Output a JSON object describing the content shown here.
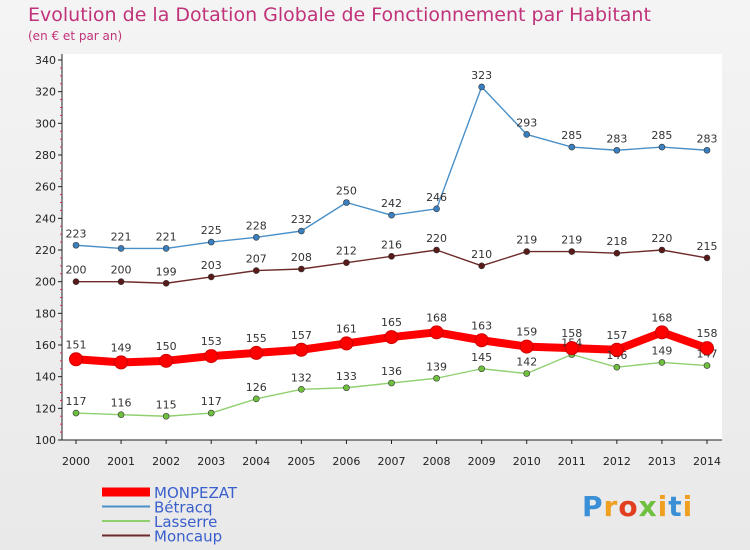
{
  "title": "Evolution de la Dotation Globale de Fonctionnement par Habitant",
  "subtitle": "(en € et par an)",
  "brand": "Proxiti",
  "chart_data": {
    "type": "line",
    "title": "Evolution de la Dotation Globale de Fonctionnement par Habitant",
    "subtitle": "(en € et par an)",
    "xlabel": "",
    "ylabel": "",
    "x": [
      2000,
      2001,
      2002,
      2003,
      2004,
      2005,
      2006,
      2007,
      2008,
      2009,
      2010,
      2011,
      2012,
      2013,
      2014
    ],
    "ylim": [
      100,
      340
    ],
    "yticks": [
      100,
      120,
      140,
      160,
      180,
      200,
      220,
      240,
      260,
      280,
      300,
      320,
      340
    ],
    "grid": false,
    "legend_position": "bottom-left",
    "series": [
      {
        "name": "Bétracq",
        "color": "#4a90c8",
        "marker": "#3a7fc0",
        "values": [
          223,
          221,
          221,
          225,
          228,
          232,
          250,
          242,
          246,
          323,
          293,
          285,
          283,
          285,
          283
        ]
      },
      {
        "name": "Moncaup",
        "color": "#6e2a2a",
        "marker": "#5a1a1a",
        "values": [
          200,
          200,
          199,
          203,
          207,
          208,
          212,
          216,
          220,
          210,
          219,
          219,
          218,
          220,
          215
        ]
      },
      {
        "name": "Lasserre",
        "color": "#90d070",
        "marker": "#70c040",
        "values": [
          117,
          116,
          115,
          117,
          126,
          132,
          133,
          136,
          139,
          145,
          142,
          154,
          146,
          149,
          147
        ]
      },
      {
        "name": "MONPEZAT",
        "color": "#ff0000",
        "marker": "#ff0000",
        "thick": true,
        "values": [
          151,
          149,
          150,
          153,
          155,
          157,
          161,
          165,
          168,
          163,
          159,
          158,
          157,
          168,
          158
        ]
      }
    ],
    "legend": [
      "MONPEZAT",
      "Bétracq",
      "Lasserre",
      "Moncaup"
    ]
  }
}
